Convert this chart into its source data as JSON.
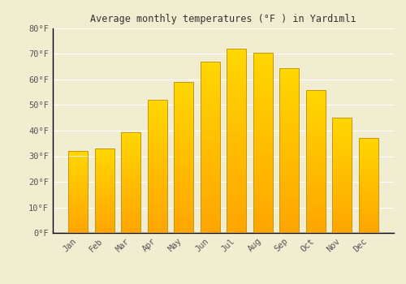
{
  "title": "Average monthly temperatures (°F ) in Yardımlı",
  "months": [
    "Jan",
    "Feb",
    "Mar",
    "Apr",
    "May",
    "Jun",
    "Jul",
    "Aug",
    "Sep",
    "Oct",
    "Nov",
    "Dec"
  ],
  "values": [
    32,
    33,
    39.5,
    52,
    59,
    67,
    72,
    70.5,
    64.5,
    56,
    45,
    37
  ],
  "bar_color_bottom": "#FFA500",
  "bar_color_top": "#FFD700",
  "bar_edge_color": "#C8960C",
  "background_color": "#F0EDD0",
  "grid_color": "#FFFFFF",
  "text_color": "#555555",
  "title_color": "#333333",
  "ylim": [
    0,
    80
  ],
  "yticks": [
    0,
    10,
    20,
    30,
    40,
    50,
    60,
    70,
    80
  ],
  "ytick_labels": [
    "0°F",
    "10°F",
    "20°F",
    "30°F",
    "40°F",
    "50°F",
    "60°F",
    "70°F",
    "80°F"
  ],
  "bar_width": 0.75,
  "n_grad": 80,
  "figsize": [
    5.0,
    3.5
  ],
  "dpi": 100
}
